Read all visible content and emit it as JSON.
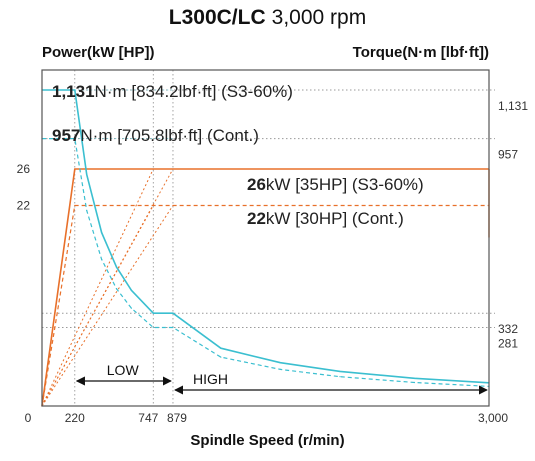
{
  "header": {
    "model": "L300C/LC",
    "speed": "3,000 rpm",
    "left_axis_title": "Power(kW [HP])",
    "right_axis_title": "Torque(N·m [lbf·ft])"
  },
  "chart_data": {
    "type": "line",
    "title": "L300C/LC 3,000 rpm",
    "xlabel": "Spindle Speed (r/min)",
    "ylabel_left": "Power(kW [HP])",
    "ylabel_right": "Torque(N·m [lbf·ft])",
    "x_ticks": [
      {
        "value": 0,
        "label": "0"
      },
      {
        "value": 220,
        "label": "220"
      },
      {
        "value": 747,
        "label": "747"
      },
      {
        "value": 879,
        "label": "879"
      },
      {
        "value": 3000,
        "label": "3,000"
      }
    ],
    "y_left_ticks": [
      {
        "value": 26,
        "label": "26"
      },
      {
        "value": 22,
        "label": "22"
      }
    ],
    "y_right_ticks": [
      {
        "value": 1131,
        "label": "1,131"
      },
      {
        "value": 957,
        "label": "957"
      },
      {
        "value": 332,
        "label": "332"
      },
      {
        "value": 281,
        "label": "281"
      }
    ],
    "series": [
      {
        "name": "S3-60% power",
        "axis": "power",
        "style": "solid",
        "color": "#e8702a",
        "x": [
          0,
          220,
          3000
        ],
        "y": [
          0,
          26,
          26
        ]
      },
      {
        "name": "Cont. power",
        "axis": "power",
        "style": "dashed",
        "color": "#e8702a",
        "x": [
          0,
          220,
          3000
        ],
        "y": [
          0,
          22,
          22
        ]
      },
      {
        "name": "S3-60% torque",
        "axis": "torque",
        "style": "solid",
        "color": "#3bbfd0",
        "x": [
          0,
          220,
          300,
          400,
          500,
          600,
          747,
          879,
          1200,
          1600,
          2000,
          2500,
          3000
        ],
        "y": [
          1131,
          1131,
          829,
          621,
          497,
          414,
          332,
          332,
          207,
          155,
          124,
          99,
          83
        ]
      },
      {
        "name": "Cont. torque",
        "axis": "torque",
        "style": "dashed",
        "color": "#3bbfd0",
        "x": [
          0,
          220,
          300,
          400,
          500,
          600,
          747,
          879,
          1200,
          1600,
          2000,
          2500,
          3000
        ],
        "y": [
          957,
          957,
          700,
          525,
          420,
          350,
          281,
          281,
          175,
          131,
          105,
          84,
          70
        ]
      }
    ],
    "annotations": [
      {
        "bold": "1,131",
        "text": "N·m [834.2lbf·ft] (S3-60%)"
      },
      {
        "bold": "957",
        "text": "N·m [705.8lbf·ft] (Cont.)"
      },
      {
        "bold": "26",
        "text": "kW [35HP] (S3-60%)"
      },
      {
        "bold": "22",
        "text": "kW [30HP] (Cont.)"
      }
    ],
    "gear_ranges": [
      {
        "label": "LOW",
        "from": 220,
        "to": 879
      },
      {
        "label": "HIGH",
        "from": 879,
        "to": 3000
      }
    ],
    "colors": {
      "power": "#e8702a",
      "torque": "#3bbfd0",
      "frame": "#555555",
      "grid": "#9a9a9a"
    }
  }
}
